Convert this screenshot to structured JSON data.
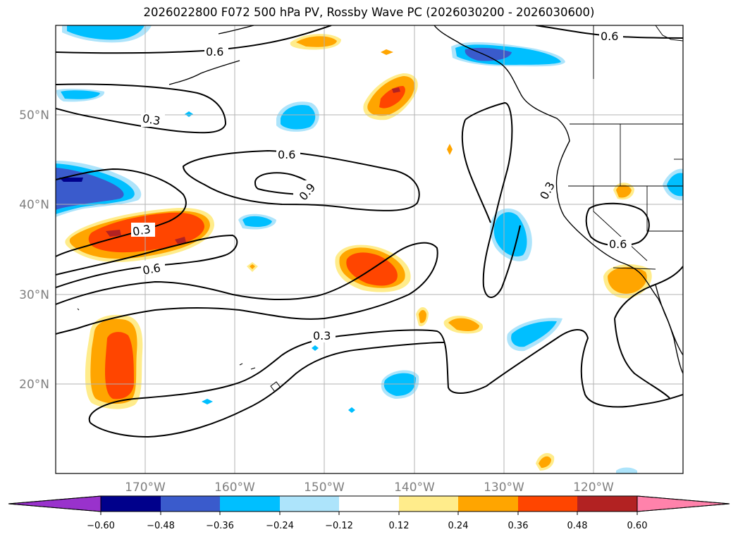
{
  "title": "2026022800 F072 500 hPa PV, Rossby Wave PC (2026030200 - 2026030600)",
  "map": {
    "lat_labels": [
      "50°N",
      "40°N",
      "30°N",
      "20°N"
    ],
    "lon_labels": [
      "170°W",
      "160°W",
      "150°W",
      "140°W",
      "130°W",
      "120°W"
    ],
    "contour_labels": [
      "0.6",
      "0.6",
      "0.3",
      "0.6",
      "0.9",
      "0.3",
      "0.3",
      "0.6",
      "0.3",
      "0.6"
    ]
  },
  "colorbar": {
    "ticks": [
      "−0.60",
      "−0.48",
      "−0.36",
      "−0.24",
      "−0.12",
      "0.12",
      "0.24",
      "0.36",
      "0.48",
      "0.60"
    ],
    "colors": [
      "#9932cc",
      "#00008b",
      "#3a5bcc",
      "#00bfff",
      "#ade4fb",
      "#ffffff",
      "#ffec8b",
      "#ffa500",
      "#ff4500",
      "#b22222",
      "#ff82ab"
    ]
  },
  "colors": {
    "deep_blue": "#3a5bcc",
    "light_blue": "#00bfff",
    "pale_blue": "#ade4fb",
    "pale_yellow": "#ffec8b",
    "orange": "#ffa500",
    "red_orange": "#ff4500",
    "dark_red": "#b22222"
  }
}
